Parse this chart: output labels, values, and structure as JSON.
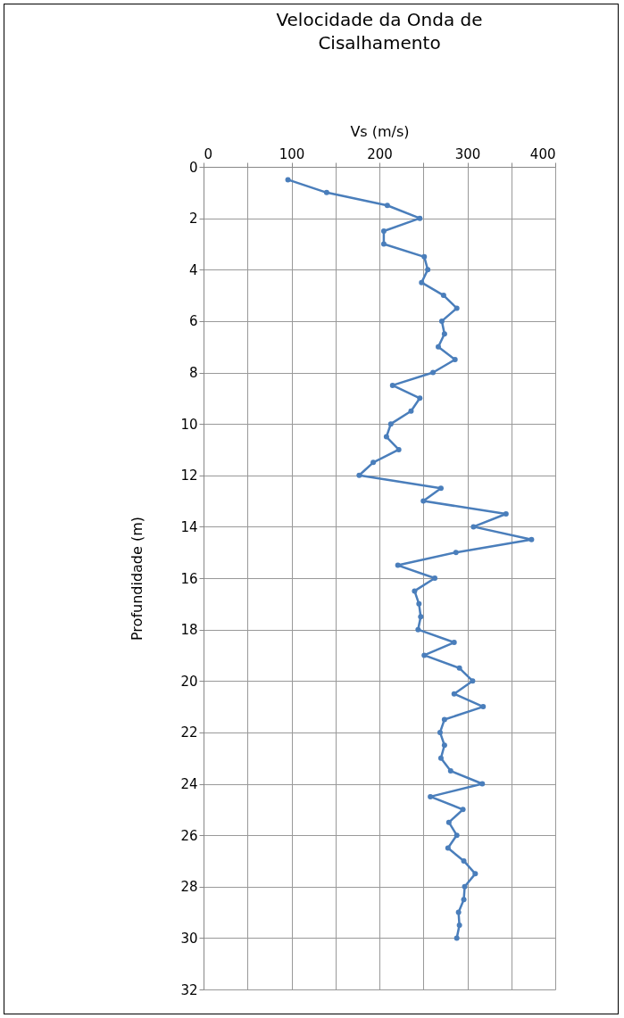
{
  "chart_data": {
    "type": "line",
    "title": "Velocidade da Onda de Cisalhamento",
    "xlabel": "Vs (m/s)",
    "ylabel": "Profundidade (m)",
    "xlim": [
      0,
      400
    ],
    "xticks": [
      0,
      {
        "value": 50,
        "label": null
      },
      100,
      {
        "value": 150,
        "label": null
      },
      200,
      {
        "value": 250,
        "label": null
      },
      300,
      {
        "value": 350,
        "label": null
      },
      400
    ],
    "ylim": [
      32,
      0
    ],
    "yticks": [
      0,
      2,
      4,
      6,
      8,
      10,
      12,
      14,
      16,
      18,
      20,
      22,
      24,
      26,
      28,
      30,
      32
    ],
    "grid": true,
    "marker": "circle",
    "line_style": "solid",
    "series": [
      {
        "color": "#4a7ebb",
        "x": [
          96,
          140,
          209,
          246,
          205,
          205,
          251,
          255,
          248,
          273,
          288,
          271,
          274,
          267,
          286,
          261,
          215,
          246,
          236,
          213,
          208,
          222,
          193,
          177,
          270,
          250,
          344,
          307,
          373,
          287,
          221,
          263,
          240,
          245,
          247,
          244,
          285,
          251,
          291,
          306,
          285,
          318,
          274,
          269,
          274,
          270,
          281,
          317,
          258,
          295,
          279,
          288,
          278,
          296,
          309,
          297,
          296,
          290,
          291,
          288
        ],
        "values": [
          0.5,
          1,
          1.5,
          2,
          2.5,
          3,
          3.5,
          4,
          4.5,
          5,
          5.5,
          6,
          6.5,
          7,
          7.5,
          8,
          8.5,
          9,
          9.5,
          10,
          10.5,
          11,
          11.5,
          12,
          12.5,
          13,
          13.5,
          14,
          14.5,
          15,
          15.5,
          16,
          16.5,
          17,
          17.5,
          18,
          18.5,
          19,
          19.5,
          20,
          20.5,
          21,
          21.5,
          22,
          22.5,
          23,
          23.5,
          24,
          24.5,
          25,
          25.5,
          26,
          26.5,
          27,
          27.5,
          28,
          28.5,
          29,
          29.5,
          30
        ]
      }
    ]
  }
}
